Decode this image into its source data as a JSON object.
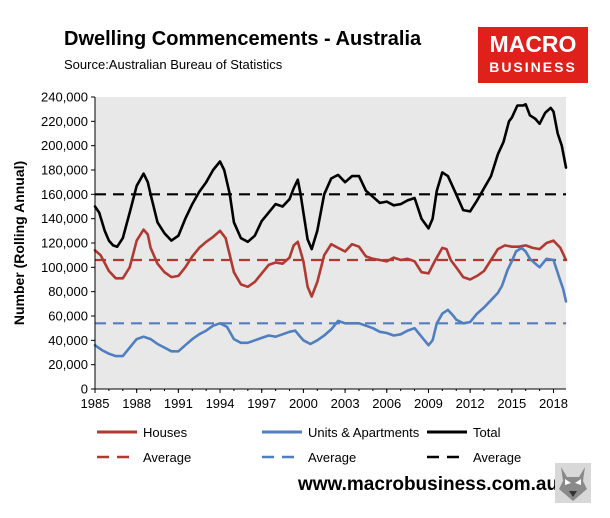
{
  "title": "Dwelling Commencements - Australia",
  "source": "Source:Australian Bureau of Statistics",
  "logo": {
    "line1": "MACRO",
    "line2": "BUSINESS",
    "color": "#e0201b"
  },
  "website": "www.macrobusiness.com.au",
  "chart_data": {
    "type": "line",
    "title": "Dwelling Commencements - Australia",
    "ylabel": "Number (Rolling Annual)",
    "xlabel": "",
    "xlim": [
      1985,
      2018.9
    ],
    "ylim": [
      0,
      240000
    ],
    "grid": false,
    "plot_background": "#e8e8e8",
    "x_ticks": [
      1985,
      1988,
      1991,
      1994,
      1997,
      2000,
      2003,
      2006,
      2009,
      2012,
      2015,
      2018
    ],
    "x_tick_labels": [
      "1985",
      "1988",
      "1991",
      "1994",
      "1997",
      "2000",
      "2003",
      "2006",
      "2009",
      "2012",
      "2015",
      "2018"
    ],
    "y_ticks": [
      0,
      20000,
      40000,
      60000,
      80000,
      100000,
      120000,
      140000,
      160000,
      180000,
      200000,
      220000,
      240000
    ],
    "y_tick_labels": [
      "0",
      "20,000",
      "40,000",
      "60,000",
      "80,000",
      "100,000",
      "120,000",
      "140,000",
      "160,000",
      "180,000",
      "200,000",
      "220,000",
      "240,000"
    ],
    "legend_position": "bottom",
    "series": [
      {
        "name": "Houses",
        "color": "#b03a32",
        "dash": false,
        "points": [
          [
            1985,
            114000
          ],
          [
            1985.4,
            110000
          ],
          [
            1986,
            97000
          ],
          [
            1986.5,
            91000
          ],
          [
            1987,
            91000
          ],
          [
            1987.5,
            100000
          ],
          [
            1988,
            122000
          ],
          [
            1988.5,
            131000
          ],
          [
            1988.8,
            127000
          ],
          [
            1989,
            116000
          ],
          [
            1989.5,
            103000
          ],
          [
            1990,
            96000
          ],
          [
            1990.5,
            92000
          ],
          [
            1991,
            93000
          ],
          [
            1991.5,
            100000
          ],
          [
            1992,
            109000
          ],
          [
            1992.5,
            116000
          ],
          [
            1993,
            121000
          ],
          [
            1993.5,
            125000
          ],
          [
            1994,
            130000
          ],
          [
            1994.4,
            124000
          ],
          [
            1994.7,
            110000
          ],
          [
            1995,
            96000
          ],
          [
            1995.5,
            86000
          ],
          [
            1996,
            84000
          ],
          [
            1996.5,
            88000
          ],
          [
            1997,
            95000
          ],
          [
            1997.5,
            102000
          ],
          [
            1998,
            104000
          ],
          [
            1998.5,
            103000
          ],
          [
            1999,
            108000
          ],
          [
            1999.3,
            118000
          ],
          [
            1999.6,
            121000
          ],
          [
            2000,
            105000
          ],
          [
            2000.3,
            84000
          ],
          [
            2000.6,
            76000
          ],
          [
            2001,
            88000
          ],
          [
            2001.5,
            110000
          ],
          [
            2002,
            119000
          ],
          [
            2002.5,
            116000
          ],
          [
            2003,
            113000
          ],
          [
            2003.5,
            119000
          ],
          [
            2004,
            117000
          ],
          [
            2004.5,
            109000
          ],
          [
            2005,
            107000
          ],
          [
            2005.5,
            106000
          ],
          [
            2006,
            105000
          ],
          [
            2006.5,
            108000
          ],
          [
            2007,
            106000
          ],
          [
            2007.5,
            107000
          ],
          [
            2008,
            105000
          ],
          [
            2008.5,
            96000
          ],
          [
            2009,
            95000
          ],
          [
            2009.5,
            106000
          ],
          [
            2010,
            116000
          ],
          [
            2010.3,
            115000
          ],
          [
            2010.6,
            106000
          ],
          [
            2011,
            100000
          ],
          [
            2011.5,
            92000
          ],
          [
            2012,
            90000
          ],
          [
            2012.5,
            93000
          ],
          [
            2013,
            97000
          ],
          [
            2013.5,
            106000
          ],
          [
            2014,
            115000
          ],
          [
            2014.5,
            118000
          ],
          [
            2015,
            117000
          ],
          [
            2015.5,
            117000
          ],
          [
            2016,
            118000
          ],
          [
            2016.5,
            116000
          ],
          [
            2017,
            115000
          ],
          [
            2017.5,
            120000
          ],
          [
            2018,
            122000
          ],
          [
            2018.5,
            116000
          ],
          [
            2018.9,
            106000
          ]
        ]
      },
      {
        "name": "Units & Apartments",
        "color": "#4f7fc0",
        "dash": false,
        "points": [
          [
            1985,
            36000
          ],
          [
            1985.5,
            32000
          ],
          [
            1986,
            29000
          ],
          [
            1986.5,
            27000
          ],
          [
            1987,
            27000
          ],
          [
            1987.5,
            34000
          ],
          [
            1988,
            41000
          ],
          [
            1988.5,
            43000
          ],
          [
            1989,
            41000
          ],
          [
            1989.5,
            37000
          ],
          [
            1990,
            34000
          ],
          [
            1990.5,
            31000
          ],
          [
            1991,
            31000
          ],
          [
            1991.5,
            36000
          ],
          [
            1992,
            41000
          ],
          [
            1992.5,
            45000
          ],
          [
            1993,
            48000
          ],
          [
            1993.5,
            52000
          ],
          [
            1994,
            54000
          ],
          [
            1994.5,
            51000
          ],
          [
            1995,
            41000
          ],
          [
            1995.5,
            38000
          ],
          [
            1996,
            38000
          ],
          [
            1996.5,
            40000
          ],
          [
            1997,
            42000
          ],
          [
            1997.5,
            44000
          ],
          [
            1998,
            43000
          ],
          [
            1998.5,
            45000
          ],
          [
            1999,
            47000
          ],
          [
            1999.4,
            48000
          ],
          [
            1999.7,
            44000
          ],
          [
            2000,
            40000
          ],
          [
            2000.5,
            37000
          ],
          [
            2001,
            40000
          ],
          [
            2001.5,
            44000
          ],
          [
            2002,
            49000
          ],
          [
            2002.5,
            56000
          ],
          [
            2003,
            54000
          ],
          [
            2003.5,
            54000
          ],
          [
            2004,
            54000
          ],
          [
            2004.5,
            52000
          ],
          [
            2005,
            50000
          ],
          [
            2005.5,
            47000
          ],
          [
            2006,
            46000
          ],
          [
            2006.5,
            44000
          ],
          [
            2007,
            45000
          ],
          [
            2007.5,
            48000
          ],
          [
            2008,
            50000
          ],
          [
            2008.5,
            43000
          ],
          [
            2009,
            36000
          ],
          [
            2009.3,
            40000
          ],
          [
            2009.6,
            54000
          ],
          [
            2010,
            62000
          ],
          [
            2010.4,
            65000
          ],
          [
            2010.8,
            60000
          ],
          [
            2011,
            57000
          ],
          [
            2011.5,
            54000
          ],
          [
            2012,
            55000
          ],
          [
            2012.5,
            62000
          ],
          [
            2013,
            67000
          ],
          [
            2013.5,
            73000
          ],
          [
            2014,
            79000
          ],
          [
            2014.3,
            85000
          ],
          [
            2014.7,
            98000
          ],
          [
            2015,
            105000
          ],
          [
            2015.3,
            113000
          ],
          [
            2015.7,
            116000
          ],
          [
            2016,
            113000
          ],
          [
            2016.3,
            107000
          ],
          [
            2016.7,
            103000
          ],
          [
            2017,
            100000
          ],
          [
            2017.5,
            107000
          ],
          [
            2018,
            106000
          ],
          [
            2018.4,
            92000
          ],
          [
            2018.7,
            82000
          ],
          [
            2018.9,
            72000
          ]
        ]
      },
      {
        "name": "Total",
        "color": "#000000",
        "dash": false,
        "points": [
          [
            1985,
            150000
          ],
          [
            1985.3,
            145000
          ],
          [
            1985.7,
            130000
          ],
          [
            1986,
            122000
          ],
          [
            1986.3,
            118000
          ],
          [
            1986.6,
            117000
          ],
          [
            1987,
            124000
          ],
          [
            1987.5,
            145000
          ],
          [
            1988,
            167000
          ],
          [
            1988.5,
            177000
          ],
          [
            1988.8,
            170000
          ],
          [
            1989,
            160000
          ],
          [
            1989.5,
            137000
          ],
          [
            1990,
            128000
          ],
          [
            1990.5,
            122000
          ],
          [
            1991,
            126000
          ],
          [
            1991.5,
            140000
          ],
          [
            1992,
            152000
          ],
          [
            1992.5,
            162000
          ],
          [
            1993,
            170000
          ],
          [
            1993.5,
            180000
          ],
          [
            1994,
            187000
          ],
          [
            1994.3,
            180000
          ],
          [
            1994.7,
            160000
          ],
          [
            1995,
            137000
          ],
          [
            1995.5,
            124000
          ],
          [
            1996,
            121000
          ],
          [
            1996.5,
            126000
          ],
          [
            1997,
            138000
          ],
          [
            1997.5,
            145000
          ],
          [
            1998,
            152000
          ],
          [
            1998.5,
            150000
          ],
          [
            1999,
            156000
          ],
          [
            1999.3,
            165000
          ],
          [
            1999.6,
            172000
          ],
          [
            1999.8,
            160000
          ],
          [
            2000,
            145000
          ],
          [
            2000.3,
            123000
          ],
          [
            2000.6,
            115000
          ],
          [
            2001,
            130000
          ],
          [
            2001.5,
            160000
          ],
          [
            2002,
            173000
          ],
          [
            2002.5,
            176000
          ],
          [
            2003,
            170000
          ],
          [
            2003.5,
            175000
          ],
          [
            2004,
            175000
          ],
          [
            2004.5,
            163000
          ],
          [
            2005,
            158000
          ],
          [
            2005.5,
            153000
          ],
          [
            2006,
            154000
          ],
          [
            2006.5,
            151000
          ],
          [
            2007,
            152000
          ],
          [
            2007.5,
            155000
          ],
          [
            2008,
            157000
          ],
          [
            2008.5,
            140000
          ],
          [
            2009,
            132000
          ],
          [
            2009.3,
            140000
          ],
          [
            2009.6,
            163000
          ],
          [
            2010,
            178000
          ],
          [
            2010.4,
            175000
          ],
          [
            2010.8,
            165000
          ],
          [
            2011,
            160000
          ],
          [
            2011.5,
            147000
          ],
          [
            2012,
            146000
          ],
          [
            2012.5,
            155000
          ],
          [
            2013,
            165000
          ],
          [
            2013.5,
            175000
          ],
          [
            2014,
            193000
          ],
          [
            2014.4,
            203000
          ],
          [
            2014.8,
            220000
          ],
          [
            2015,
            223000
          ],
          [
            2015.4,
            233000
          ],
          [
            2015.8,
            233000
          ],
          [
            2016,
            234000
          ],
          [
            2016.3,
            225000
          ],
          [
            2016.7,
            222000
          ],
          [
            2017,
            218000
          ],
          [
            2017.4,
            227000
          ],
          [
            2017.8,
            231000
          ],
          [
            2018,
            228000
          ],
          [
            2018.3,
            210000
          ],
          [
            2018.6,
            200000
          ],
          [
            2018.9,
            182000
          ]
        ]
      },
      {
        "name": "Average",
        "color": "#b03a32",
        "dash": true,
        "value": 106000
      },
      {
        "name": "Average",
        "color": "#4f7fc0",
        "dash": true,
        "value": 54000
      },
      {
        "name": "Average",
        "color": "#000000",
        "dash": true,
        "value": 160000
      }
    ]
  }
}
